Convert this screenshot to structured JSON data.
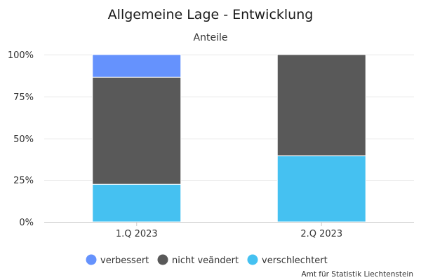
{
  "chart_data": {
    "type": "bar",
    "stacked": true,
    "normalized": true,
    "title": "Allgemeine Lage - Entwicklung",
    "subtitle": "Anteile",
    "categories": [
      "1.Q 2023",
      "2.Q 2023"
    ],
    "series": [
      {
        "name": "verschlechtert",
        "color": "#45c1f1",
        "values": [
          22.5,
          39.5
        ]
      },
      {
        "name": "nicht veändert",
        "color": "#595959",
        "values": [
          64.0,
          60.5
        ]
      },
      {
        "name": "verbessert",
        "color": "#6592fd",
        "values": [
          13.5,
          0
        ]
      }
    ],
    "legend_order": [
      "verbessert",
      "nicht veändert",
      "verschlechtert"
    ],
    "y_ticks": [
      "0%",
      "25%",
      "50%",
      "75%",
      "100%"
    ],
    "ylim": [
      0,
      100
    ],
    "grid": true,
    "legend_position": "bottom",
    "credit": "Amt für Statistik Liechtenstein"
  }
}
